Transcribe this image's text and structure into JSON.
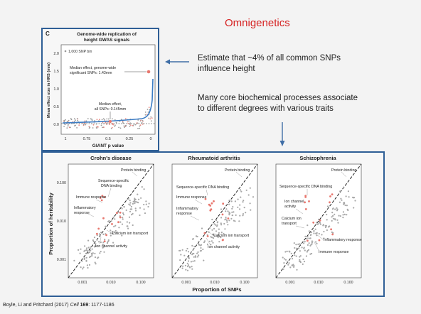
{
  "slide": {
    "title": "Omnigenetics",
    "note1": [
      "Estimate that ~4% of all common SNPs",
      "influence height"
    ],
    "note2": [
      "Many core biochemical processes associate",
      "to different degrees with various traits"
    ],
    "citation": {
      "prefix": "Boyle, Li and Pritchard (2017) ",
      "journal": "Cell",
      "volume": "169",
      "pages": ": 1177-1186"
    },
    "colors": {
      "accent": "#d62323",
      "frame": "#2f5f96",
      "arrow": "#3f6ea6"
    }
  },
  "panel_c": {
    "letter": "C",
    "title": [
      "Genome-wide replication of",
      "height GWAS signals"
    ],
    "ylabel": "Mean effect size in HRS (mm)",
    "xlabel": "GIANT p value",
    "yticks": [
      "2.0",
      "1.5",
      "1.0",
      "0.5",
      "0.0"
    ],
    "xticks": [
      "1",
      "0.75",
      "0.5",
      "0.25",
      "0"
    ],
    "legend": "1,000 SNP bin",
    "ann1": [
      "Median effect, genome-wide",
      "significant SNPs: 1.43mm"
    ],
    "ann2": [
      "Median effect,",
      "all SNPs: 0.145mm"
    ]
  },
  "traits": {
    "ylabel": "Proportion of heritability",
    "xlabel": "Proportion of SNPs",
    "panels": [
      {
        "title": "Crohn's disease",
        "yticks": [
          "0.100",
          "0.010",
          "0.001"
        ],
        "xticks": [
          "0.001",
          "0.010",
          "0.100"
        ],
        "labels": [
          "Protein binding",
          "Sequence-specific",
          "DNA binding",
          "Immune response",
          "Inflammatory",
          "response",
          "Calcium ion transport",
          "Ion channel activity"
        ]
      },
      {
        "title": "Rheumatoid arthritis",
        "yticks": [],
        "xticks": [
          "0.001",
          "0.010",
          "0.100"
        ],
        "labels": [
          "Protein binding",
          "Sequence-specific DNA binding",
          "Immune response",
          "Inflammatory",
          "response",
          "Calcium ion transport",
          "Ion channel activity"
        ]
      },
      {
        "title": "Schizophrenia",
        "yticks": [],
        "xticks": [
          "0.001",
          "0.010",
          "0.100"
        ],
        "labels": [
          "Protein binding",
          "Sequence-specific DNA binding",
          "Ion channel",
          "activity",
          "Calcium ion",
          "transport",
          "Inflammatory response",
          "Immune response"
        ]
      }
    ]
  }
}
